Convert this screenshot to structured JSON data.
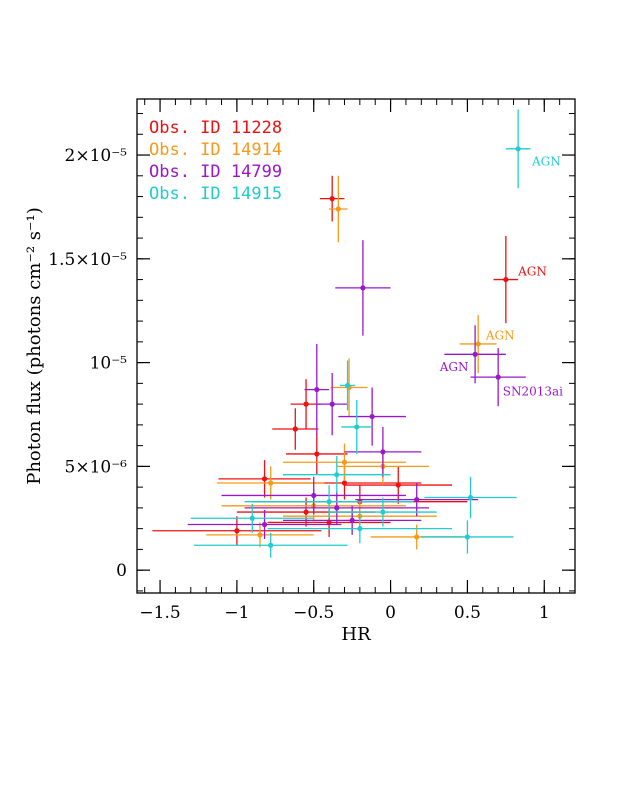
{
  "chart_data": {
    "type": "scatter",
    "title": "",
    "xlabel": "HR",
    "ylabel": "Photon flux (photons cm⁻² s⁻¹)",
    "xlim": [
      -1.65,
      1.2
    ],
    "ylim": [
      -1.1e-06,
      2.27e-05
    ],
    "grid": false,
    "legend_position": "top-left",
    "x_ticks": [
      {
        "value": -1.5,
        "label": "−1.5"
      },
      {
        "value": -1.0,
        "label": "−1"
      },
      {
        "value": -0.5,
        "label": "−0.5"
      },
      {
        "value": 0.0,
        "label": "0"
      },
      {
        "value": 0.5,
        "label": "0.5"
      },
      {
        "value": 1.0,
        "label": "1"
      }
    ],
    "y_ticks": [
      {
        "value": 0,
        "label": "0"
      },
      {
        "value": 5e-06,
        "label": "5×10⁻⁶"
      },
      {
        "value": 1e-05,
        "label": "10⁻⁵"
      },
      {
        "value": 1.5e-05,
        "label": "1.5×10⁻⁵"
      },
      {
        "value": 2e-05,
        "label": "2×10⁻⁵"
      }
    ],
    "series": [
      {
        "name": "Obs. ID 11228",
        "color": "#ee1111",
        "points": [
          {
            "x": -0.38,
            "y": 1.79e-05,
            "xerr": 0.08,
            "yerr": 1.1e-06
          },
          {
            "x": 0.75,
            "y": 1.4e-05,
            "xerr": 0.08,
            "yerr": 2.1e-06
          },
          {
            "x": -0.55,
            "y": 8e-06,
            "xerr": 0.1,
            "yerr": 1.2e-06
          },
          {
            "x": -0.62,
            "y": 6.8e-06,
            "xerr": 0.15,
            "yerr": 1e-06
          },
          {
            "x": -0.48,
            "y": 5.6e-06,
            "xerr": 0.2,
            "yerr": 1e-06
          },
          {
            "x": -0.82,
            "y": 4.4e-06,
            "xerr": 0.3,
            "yerr": 9e-07
          },
          {
            "x": -0.3,
            "y": 4.2e-06,
            "xerr": 0.5,
            "yerr": 8e-07
          },
          {
            "x": -0.2,
            "y": 3.3e-06,
            "xerr": 0.7,
            "yerr": 8e-07
          },
          {
            "x": -1.0,
            "y": 1.9e-06,
            "xerr": 0.55,
            "yerr": 7e-07
          },
          {
            "x": -0.55,
            "y": 2.8e-06,
            "xerr": 0.45,
            "yerr": 7e-07
          },
          {
            "x": 0.05,
            "y": 4.1e-06,
            "xerr": 0.35,
            "yerr": 9e-07
          },
          {
            "x": -0.4,
            "y": 2.3e-06,
            "xerr": 0.4,
            "yerr": 7e-07
          }
        ]
      },
      {
        "name": "Obs. ID 14914",
        "color": "#f59a1a",
        "points": [
          {
            "x": -0.34,
            "y": 1.74e-05,
            "xerr": 0.06,
            "yerr": 1.6e-06
          },
          {
            "x": 0.57,
            "y": 1.09e-05,
            "xerr": 0.12,
            "yerr": 1.4e-06
          },
          {
            "x": -0.27,
            "y": 8.8e-06,
            "xerr": 0.12,
            "yerr": 1.4e-06
          },
          {
            "x": -0.3,
            "y": 5.2e-06,
            "xerr": 0.4,
            "yerr": 9e-07
          },
          {
            "x": -0.78,
            "y": 4.2e-06,
            "xerr": 0.35,
            "yerr": 8e-07
          },
          {
            "x": -0.05,
            "y": 5e-06,
            "xerr": 0.3,
            "yerr": 9e-07
          },
          {
            "x": -0.5,
            "y": 3.1e-06,
            "xerr": 0.6,
            "yerr": 8e-07
          },
          {
            "x": 0.17,
            "y": 1.6e-06,
            "xerr": 0.3,
            "yerr": 6e-07
          },
          {
            "x": -0.85,
            "y": 1.7e-06,
            "xerr": 0.35,
            "yerr": 6e-07
          },
          {
            "x": -0.2,
            "y": 2.6e-06,
            "xerr": 0.5,
            "yerr": 7e-07
          }
        ]
      },
      {
        "name": "Obs. ID 14799",
        "color": "#9918cc",
        "points": [
          {
            "x": -0.18,
            "y": 1.36e-05,
            "xerr": 0.18,
            "yerr": 2.3e-06
          },
          {
            "x": 0.55,
            "y": 1.04e-05,
            "xerr": 0.2,
            "yerr": 1.4e-06
          },
          {
            "x": 0.7,
            "y": 9.3e-06,
            "xerr": 0.18,
            "yerr": 1.4e-06
          },
          {
            "x": -0.48,
            "y": 8.7e-06,
            "xerr": 0.08,
            "yerr": 2.2e-06
          },
          {
            "x": -0.38,
            "y": 8e-06,
            "xerr": 0.1,
            "yerr": 1.5e-06
          },
          {
            "x": -0.12,
            "y": 7.4e-06,
            "xerr": 0.22,
            "yerr": 1.4e-06
          },
          {
            "x": -0.05,
            "y": 5.7e-06,
            "xerr": 0.25,
            "yerr": 1.2e-06
          },
          {
            "x": -0.5,
            "y": 3.6e-06,
            "xerr": 0.6,
            "yerr": 9e-07
          },
          {
            "x": 0.17,
            "y": 3.4e-06,
            "xerr": 0.4,
            "yerr": 8e-07
          },
          {
            "x": -0.35,
            "y": 3e-06,
            "xerr": 0.6,
            "yerr": 8e-07
          },
          {
            "x": -0.82,
            "y": 2.2e-06,
            "xerr": 0.5,
            "yerr": 7e-07
          },
          {
            "x": -0.25,
            "y": 2.4e-06,
            "xerr": 0.45,
            "yerr": 7e-07
          }
        ]
      },
      {
        "name": "Obs. ID 14915",
        "color": "#22cccc",
        "points": [
          {
            "x": 0.83,
            "y": 2.03e-05,
            "xerr": 0.08,
            "yerr": 1.9e-06
          },
          {
            "x": -0.28,
            "y": 8.9e-06,
            "xerr": 0.05,
            "yerr": 1.2e-06
          },
          {
            "x": -0.22,
            "y": 6.9e-06,
            "xerr": 0.1,
            "yerr": 1.3e-06
          },
          {
            "x": -0.35,
            "y": 4.6e-06,
            "xerr": 0.35,
            "yerr": 9e-07
          },
          {
            "x": -0.4,
            "y": 3.3e-06,
            "xerr": 0.55,
            "yerr": 8e-07
          },
          {
            "x": 0.52,
            "y": 3.5e-06,
            "xerr": 0.3,
            "yerr": 1e-06
          },
          {
            "x": 0.5,
            "y": 1.6e-06,
            "xerr": 0.3,
            "yerr": 8e-07
          },
          {
            "x": -0.78,
            "y": 1.2e-06,
            "xerr": 0.5,
            "yerr": 6e-07
          },
          {
            "x": -0.2,
            "y": 2e-06,
            "xerr": 0.6,
            "yerr": 7e-07
          },
          {
            "x": -0.9,
            "y": 2.5e-06,
            "xerr": 0.4,
            "yerr": 7e-07
          },
          {
            "x": -0.05,
            "y": 2.8e-06,
            "xerr": 0.35,
            "yerr": 7e-07
          }
        ]
      }
    ],
    "annotations": [
      {
        "text": "AGN",
        "series": "Obs. ID 14915",
        "color": "#22cccc",
        "x": 0.92,
        "y": 1.97e-05
      },
      {
        "text": "AGN",
        "series": "Obs. ID 11228",
        "color": "#ee1111",
        "x": 0.83,
        "y": 1.44e-05
      },
      {
        "text": "AGN",
        "series": "Obs. ID 14914",
        "color": "#f59a1a",
        "x": 0.62,
        "y": 1.13e-05
      },
      {
        "text": "AGN",
        "series": "Obs. ID 14799",
        "color": "#9918cc",
        "x": 0.32,
        "y": 9.8e-06
      },
      {
        "text": "SN2013ai",
        "series": "Obs. ID 14799",
        "color": "#9918cc",
        "x": 0.73,
        "y": 8.6e-06
      }
    ]
  }
}
